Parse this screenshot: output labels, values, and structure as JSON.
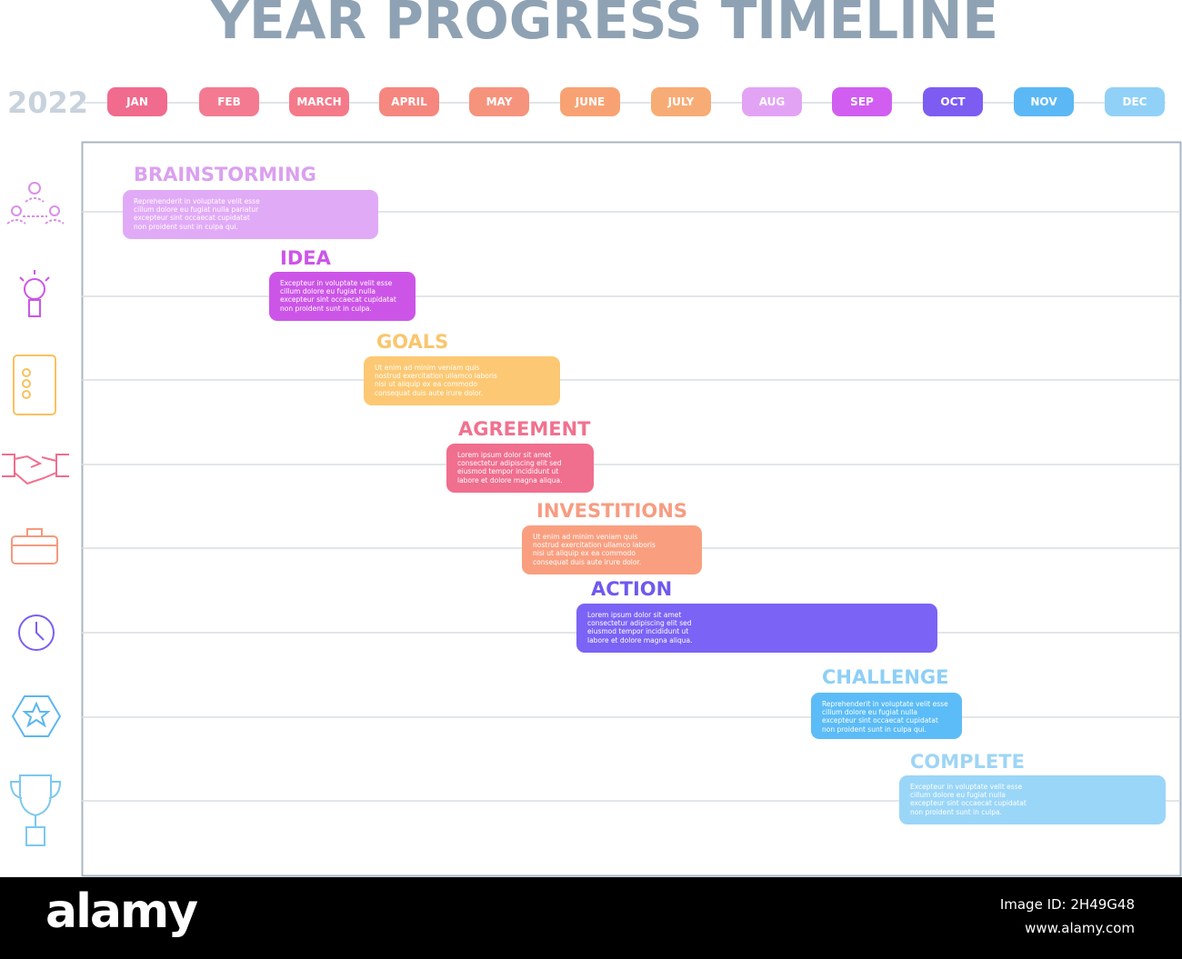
{
  "header": {
    "title": "YEAR PROGRESS TIMELINE",
    "year": "2022",
    "months": [
      "JAN",
      "FEB",
      "MARCH",
      "APRIL",
      "MAY",
      "JUNE",
      "JULY",
      "AUG",
      "SEP",
      "OCT",
      "NOV",
      "DEC"
    ]
  },
  "tasks": [
    {
      "title": "BRAINSTORMING",
      "lines": [
        "Reprehenderit in voluptate velit esse",
        "cillum dolore eu fugiat nulla pariatur",
        "excepteur sint occaecat cupidatat",
        "non proident sunt in culpa qui."
      ]
    },
    {
      "title": "IDEA",
      "lines": [
        "Excepteur in voluptate velit esse",
        "cillum dolore eu fugiat nulla",
        "excepteur sint occaecat cupidatat",
        "non proident sunt in culpa."
      ]
    },
    {
      "title": "GOALS",
      "lines": [
        "Ut enim ad minim veniam quis",
        "nostrud exercitation ullamco laboris",
        "nisi ut aliquip ex ea commodo",
        "consequat duis aute irure dolor."
      ]
    },
    {
      "title": "AGREEMENT",
      "lines": [
        "Lorem ipsum dolor sit amet",
        "consectetur adipiscing elit sed",
        "eiusmod tempor incididunt ut",
        "labore et dolore magna aliqua."
      ]
    },
    {
      "title": "INVESTITIONS",
      "lines": [
        "Ut enim ad minim veniam quis",
        "nostrud exercitation ullamco laboris",
        "nisi ut aliquip ex ea commodo",
        "consequat duis aute irure dolor."
      ]
    },
    {
      "title": "ACTION",
      "lines": [
        "Lorem ipsum dolor sit amet",
        "consectetur adipiscing elit sed",
        "eiusmod tempor incididunt ut",
        "labore et dolore magna aliqua."
      ]
    },
    {
      "title": "CHALLENGE",
      "lines": [
        "Reprehenderit in voluptate velit esse",
        "cillum dolore eu fugiat nulla",
        "excepteur sint occaecat cupidatat",
        "non proident sunt in culpa qui."
      ]
    },
    {
      "title": "COMPLETE",
      "lines": [
        "Excepteur in voluptate velit esse",
        "cillum dolore eu fugiat nulla",
        "excepteur sint occaecat cupidatat",
        "non proident sunt in culpa."
      ]
    }
  ],
  "footer": {
    "brand": "alamy",
    "image_id": "Image ID: 2H49G48",
    "url": "www.alamy.com"
  }
}
